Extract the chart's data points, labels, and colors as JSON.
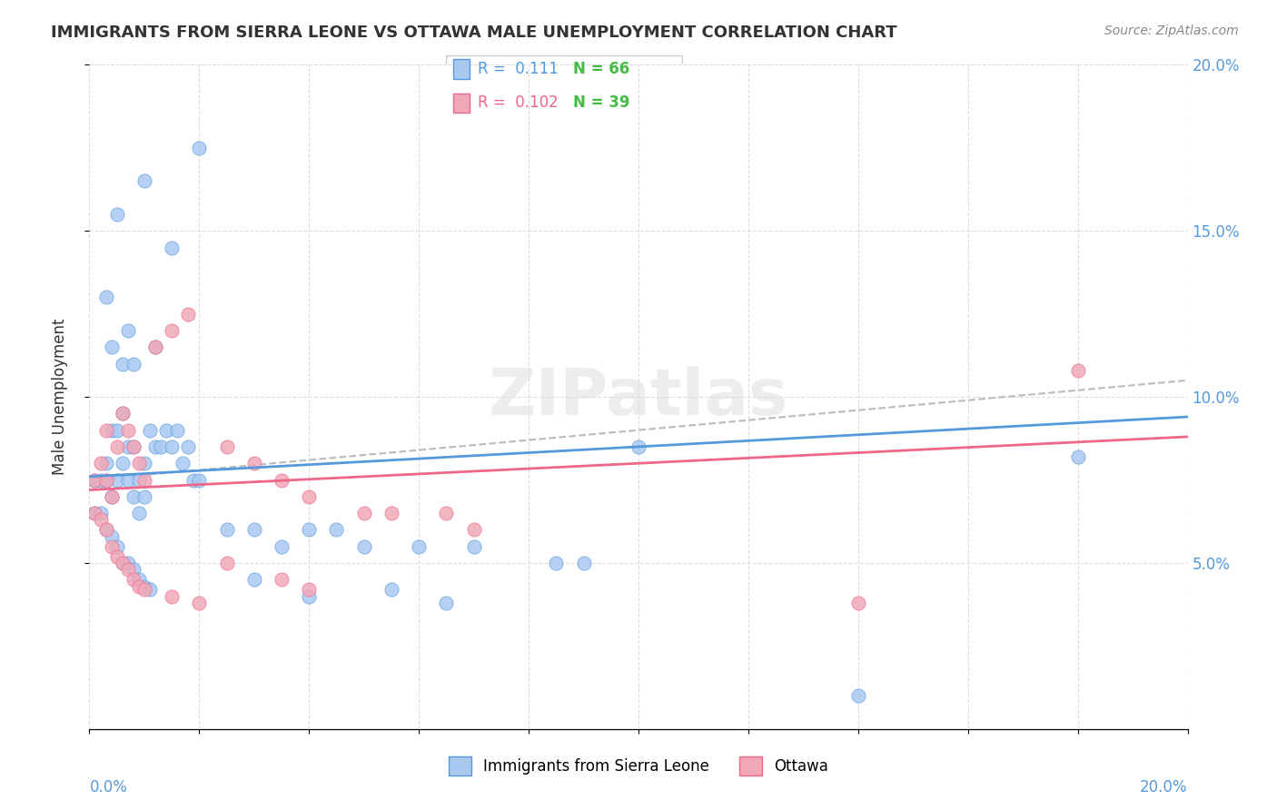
{
  "title": "IMMIGRANTS FROM SIERRA LEONE VS OTTAWA MALE UNEMPLOYMENT CORRELATION CHART",
  "source": "Source: ZipAtlas.com",
  "ylabel": "Male Unemployment",
  "right_ytick_vals": [
    0.05,
    0.1,
    0.15,
    0.2
  ],
  "watermark": "ZIPatlas",
  "blue_color": "#a8c8f0",
  "pink_color": "#f0a8b8",
  "blue_line_color": "#5599dd",
  "pink_line_color": "#ee6688",
  "trend_line_color": "#bbbbbb",
  "blue_scatter": [
    [
      0.001,
      0.075
    ],
    [
      0.002,
      0.075
    ],
    [
      0.003,
      0.075
    ],
    [
      0.003,
      0.08
    ],
    [
      0.004,
      0.09
    ],
    [
      0.004,
      0.07
    ],
    [
      0.005,
      0.09
    ],
    [
      0.005,
      0.075
    ],
    [
      0.006,
      0.08
    ],
    [
      0.006,
      0.095
    ],
    [
      0.007,
      0.085
    ],
    [
      0.007,
      0.075
    ],
    [
      0.008,
      0.07
    ],
    [
      0.008,
      0.085
    ],
    [
      0.009,
      0.075
    ],
    [
      0.009,
      0.065
    ],
    [
      0.01,
      0.08
    ],
    [
      0.01,
      0.07
    ],
    [
      0.011,
      0.09
    ],
    [
      0.012,
      0.085
    ],
    [
      0.013,
      0.085
    ],
    [
      0.014,
      0.09
    ],
    [
      0.015,
      0.085
    ],
    [
      0.016,
      0.09
    ],
    [
      0.017,
      0.08
    ],
    [
      0.018,
      0.085
    ],
    [
      0.019,
      0.075
    ],
    [
      0.02,
      0.075
    ],
    [
      0.025,
      0.06
    ],
    [
      0.03,
      0.06
    ],
    [
      0.035,
      0.055
    ],
    [
      0.04,
      0.06
    ],
    [
      0.045,
      0.06
    ],
    [
      0.05,
      0.055
    ],
    [
      0.06,
      0.055
    ],
    [
      0.07,
      0.055
    ],
    [
      0.085,
      0.05
    ],
    [
      0.09,
      0.05
    ],
    [
      0.1,
      0.085
    ],
    [
      0.005,
      0.155
    ],
    [
      0.01,
      0.165
    ],
    [
      0.015,
      0.145
    ],
    [
      0.02,
      0.175
    ],
    [
      0.003,
      0.13
    ],
    [
      0.007,
      0.12
    ],
    [
      0.004,
      0.115
    ],
    [
      0.006,
      0.11
    ],
    [
      0.008,
      0.11
    ],
    [
      0.012,
      0.115
    ],
    [
      0.001,
      0.065
    ],
    [
      0.002,
      0.065
    ],
    [
      0.003,
      0.06
    ],
    [
      0.004,
      0.058
    ],
    [
      0.005,
      0.055
    ],
    [
      0.006,
      0.05
    ],
    [
      0.007,
      0.05
    ],
    [
      0.008,
      0.048
    ],
    [
      0.009,
      0.045
    ],
    [
      0.01,
      0.043
    ],
    [
      0.011,
      0.042
    ],
    [
      0.03,
      0.045
    ],
    [
      0.04,
      0.04
    ],
    [
      0.055,
      0.042
    ],
    [
      0.065,
      0.038
    ],
    [
      0.14,
      0.01
    ],
    [
      0.18,
      0.082
    ]
  ],
  "pink_scatter": [
    [
      0.001,
      0.075
    ],
    [
      0.002,
      0.08
    ],
    [
      0.003,
      0.09
    ],
    [
      0.003,
      0.075
    ],
    [
      0.004,
      0.07
    ],
    [
      0.005,
      0.085
    ],
    [
      0.006,
      0.095
    ],
    [
      0.007,
      0.09
    ],
    [
      0.008,
      0.085
    ],
    [
      0.009,
      0.08
    ],
    [
      0.01,
      0.075
    ],
    [
      0.012,
      0.115
    ],
    [
      0.015,
      0.12
    ],
    [
      0.018,
      0.125
    ],
    [
      0.025,
      0.085
    ],
    [
      0.03,
      0.08
    ],
    [
      0.035,
      0.075
    ],
    [
      0.04,
      0.07
    ],
    [
      0.05,
      0.065
    ],
    [
      0.055,
      0.065
    ],
    [
      0.065,
      0.065
    ],
    [
      0.07,
      0.06
    ],
    [
      0.001,
      0.065
    ],
    [
      0.002,
      0.063
    ],
    [
      0.003,
      0.06
    ],
    [
      0.004,
      0.055
    ],
    [
      0.005,
      0.052
    ],
    [
      0.006,
      0.05
    ],
    [
      0.007,
      0.048
    ],
    [
      0.008,
      0.045
    ],
    [
      0.009,
      0.043
    ],
    [
      0.01,
      0.042
    ],
    [
      0.015,
      0.04
    ],
    [
      0.02,
      0.038
    ],
    [
      0.025,
      0.05
    ],
    [
      0.035,
      0.045
    ],
    [
      0.04,
      0.042
    ],
    [
      0.18,
      0.108
    ],
    [
      0.14,
      0.038
    ]
  ],
  "blue_line": [
    [
      0.0,
      0.076
    ],
    [
      0.2,
      0.094
    ]
  ],
  "pink_line": [
    [
      0.0,
      0.072
    ],
    [
      0.2,
      0.088
    ]
  ],
  "gray_dash_line": [
    [
      0.0,
      0.075
    ],
    [
      0.2,
      0.105
    ]
  ],
  "xlim": [
    0.0,
    0.2
  ],
  "ylim": [
    0.0,
    0.2
  ],
  "legend_entries": [
    {
      "r": "0.111",
      "n": "66"
    },
    {
      "r": "0.102",
      "n": "39"
    }
  ],
  "bottom_legend": [
    "Immigrants from Sierra Leone",
    "Ottawa"
  ],
  "green_color": "#44bb44"
}
